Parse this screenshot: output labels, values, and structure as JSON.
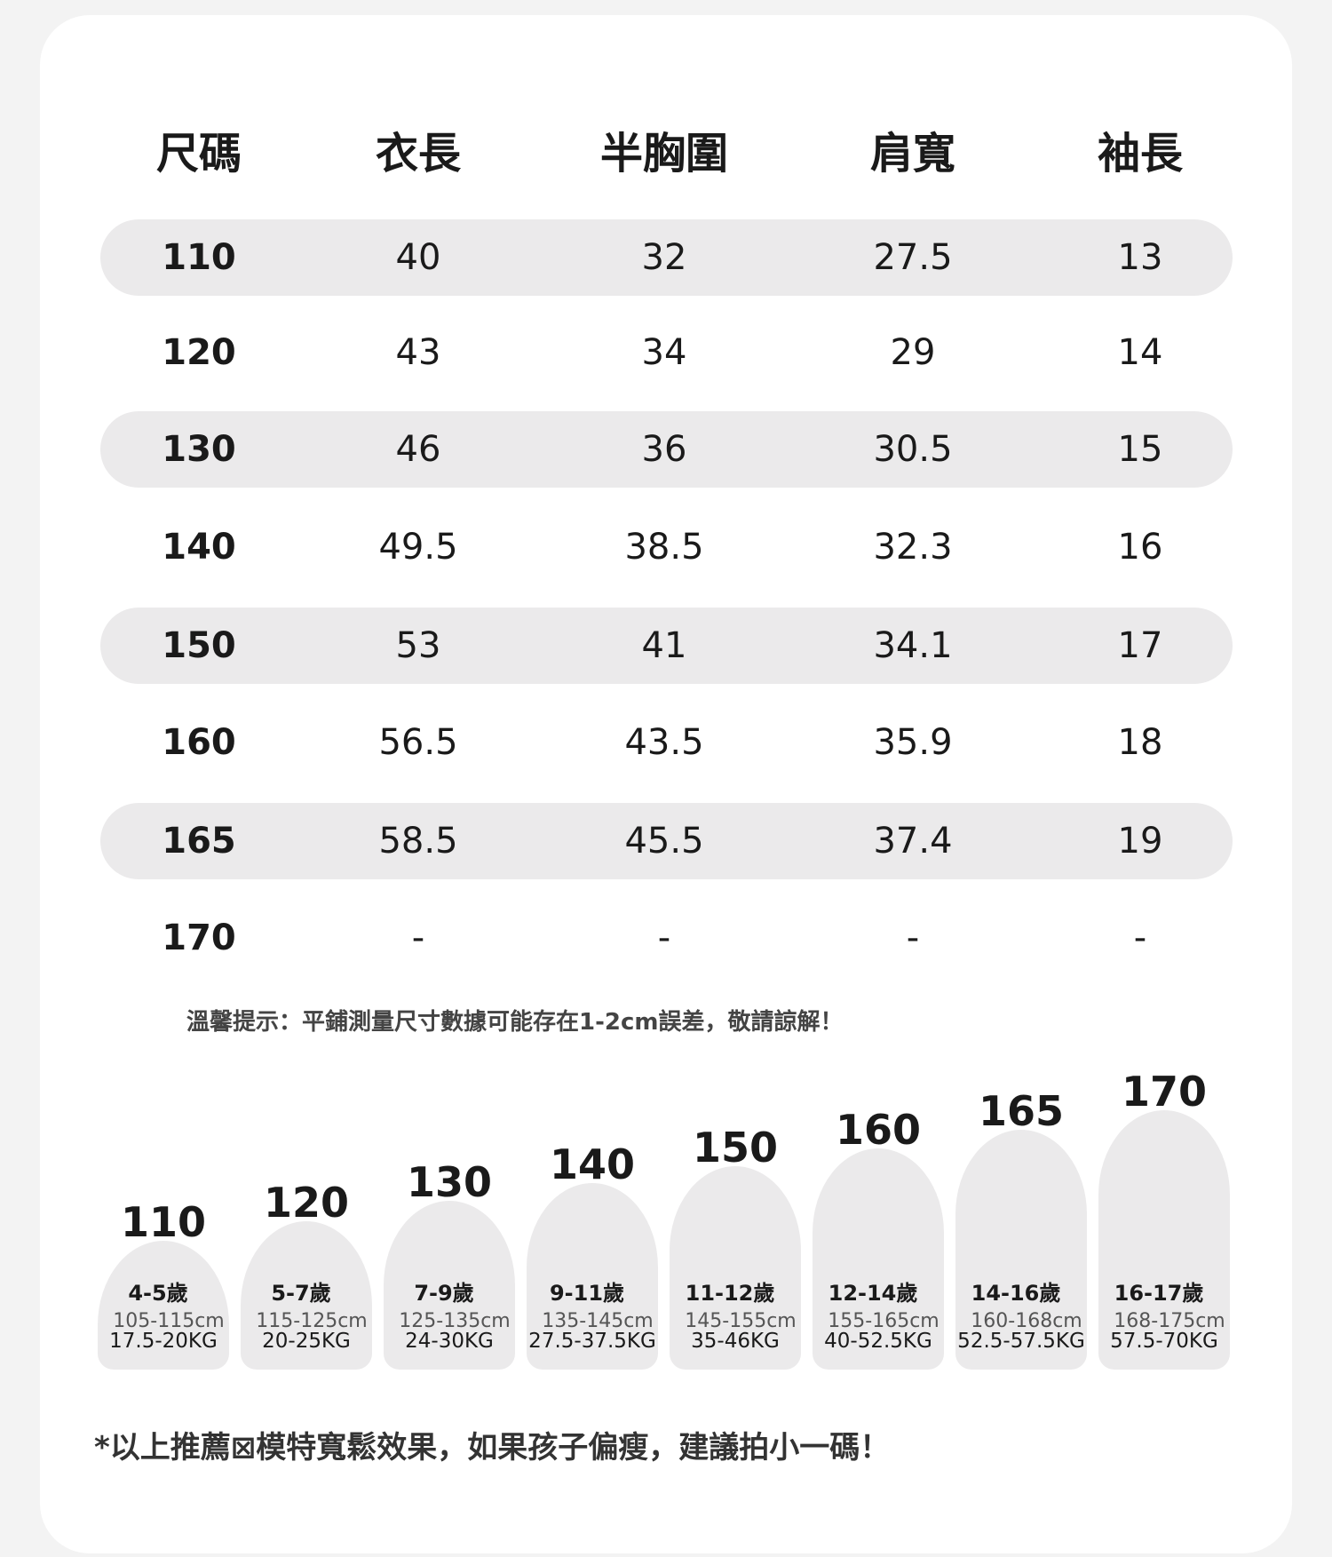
{
  "table": {
    "headers": [
      "尺碼",
      "衣長",
      "半胸圍",
      "肩寬",
      "袖長"
    ],
    "rows": [
      [
        "110",
        "40",
        "32",
        "27.5",
        "13"
      ],
      [
        "120",
        "43",
        "34",
        "29",
        "14"
      ],
      [
        "130",
        "46",
        "36",
        "30.5",
        "15"
      ],
      [
        "140",
        "49.5",
        "38.5",
        "32.3",
        "16"
      ],
      [
        "150",
        "53",
        "41",
        "34.1",
        "17"
      ],
      [
        "160",
        "56.5",
        "43.5",
        "35.9",
        "18"
      ],
      [
        "165",
        "58.5",
        "45.5",
        "37.4",
        "19"
      ],
      [
        "170",
        "-",
        "-",
        "-",
        "-"
      ]
    ]
  },
  "tip": "溫馨提示：平鋪測量尺寸數據可能存在1-2cm誤差，敬請諒解！",
  "guide": [
    {
      "size": "110",
      "age": "4-5歲",
      "height": "105-115cm",
      "weight": "17.5-20KG"
    },
    {
      "size": "120",
      "age": "5-7歲",
      "height": "115-125cm",
      "weight": "20-25KG"
    },
    {
      "size": "130",
      "age": "7-9歲",
      "height": "125-135cm",
      "weight": "24-30KG"
    },
    {
      "size": "140",
      "age": "9-11歲",
      "height": "135-145cm",
      "weight": "27.5-37.5KG"
    },
    {
      "size": "150",
      "age": "11-12歲",
      "height": "145-155cm",
      "weight": "35-46KG"
    },
    {
      "size": "160",
      "age": "12-14歲",
      "height": "155-165cm",
      "weight": "40-52.5KG"
    },
    {
      "size": "165",
      "age": "14-16歲",
      "height": "160-168cm",
      "weight": "52.5-57.5KG"
    },
    {
      "size": "170",
      "age": "16-17歲",
      "height": "168-175cm",
      "weight": "57.5-70KG"
    }
  ],
  "note": "*以上推薦⊠模特寬鬆效果，如果孩子偏瘦，建議拍小一碼！"
}
